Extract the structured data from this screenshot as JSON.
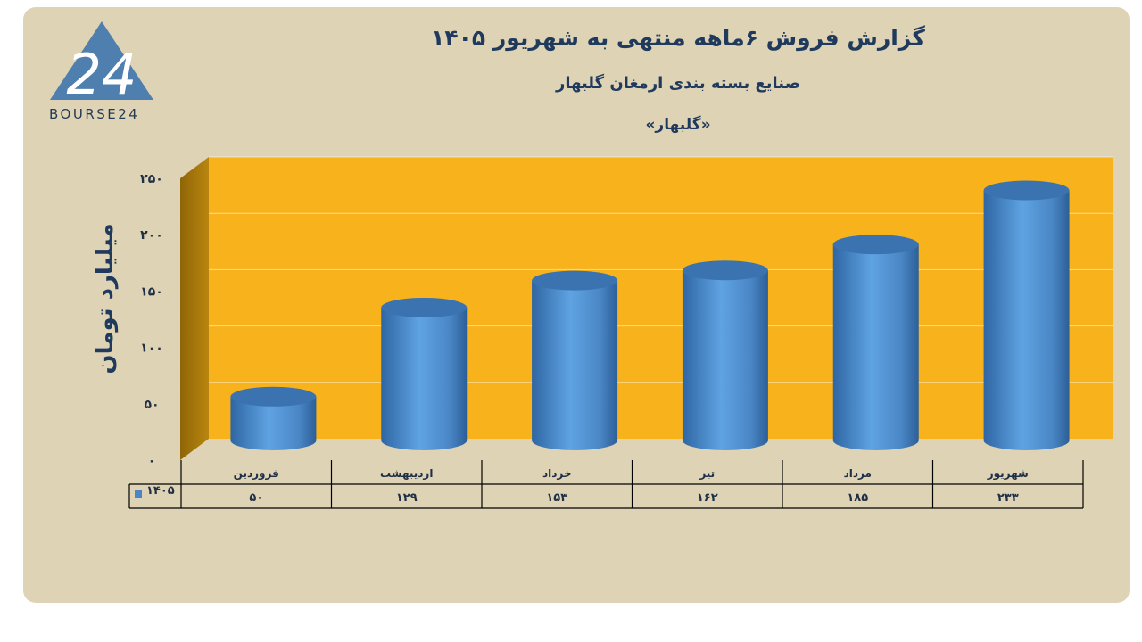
{
  "header": {
    "title": "گزارش  فروش  ۶ماهه منتهی به شهریور ۱۴۰۵",
    "subtitle": "صنایع بسته بندی ارمغان گلبهار",
    "symbol": "«گلبهار»"
  },
  "logo": {
    "text": "BOURSE24",
    "mark": "24"
  },
  "colors": {
    "background": "#dfd3b6",
    "plot_back": "#f8b21b",
    "plot_side": "#a8790d",
    "bar": "#4a86c5",
    "text": "#1f3a5c"
  },
  "chart_data": {
    "type": "bar",
    "style": "3d-cylinder",
    "categories": [
      "فروردین",
      "اردیبهشت",
      "خرداد",
      "تیر",
      "مرداد",
      "شهریور"
    ],
    "series": [
      {
        "name": "۱۴۰۵",
        "values": [
          50,
          129,
          153,
          162,
          185,
          233
        ],
        "value_labels": [
          "۵۰",
          "۱۲۹",
          "۱۵۳",
          "۱۶۲",
          "۱۸۵",
          "۲۳۳"
        ]
      }
    ],
    "ylabel": "میلیارد تومان",
    "ylim": [
      0,
      250
    ],
    "yticks": [
      0,
      50,
      100,
      150,
      200,
      250
    ],
    "ytick_labels": [
      "۰",
      "۵۰",
      "۱۰۰",
      "۱۵۰",
      "۲۰۰",
      "۲۵۰"
    ],
    "grid": true,
    "data_table": true
  }
}
